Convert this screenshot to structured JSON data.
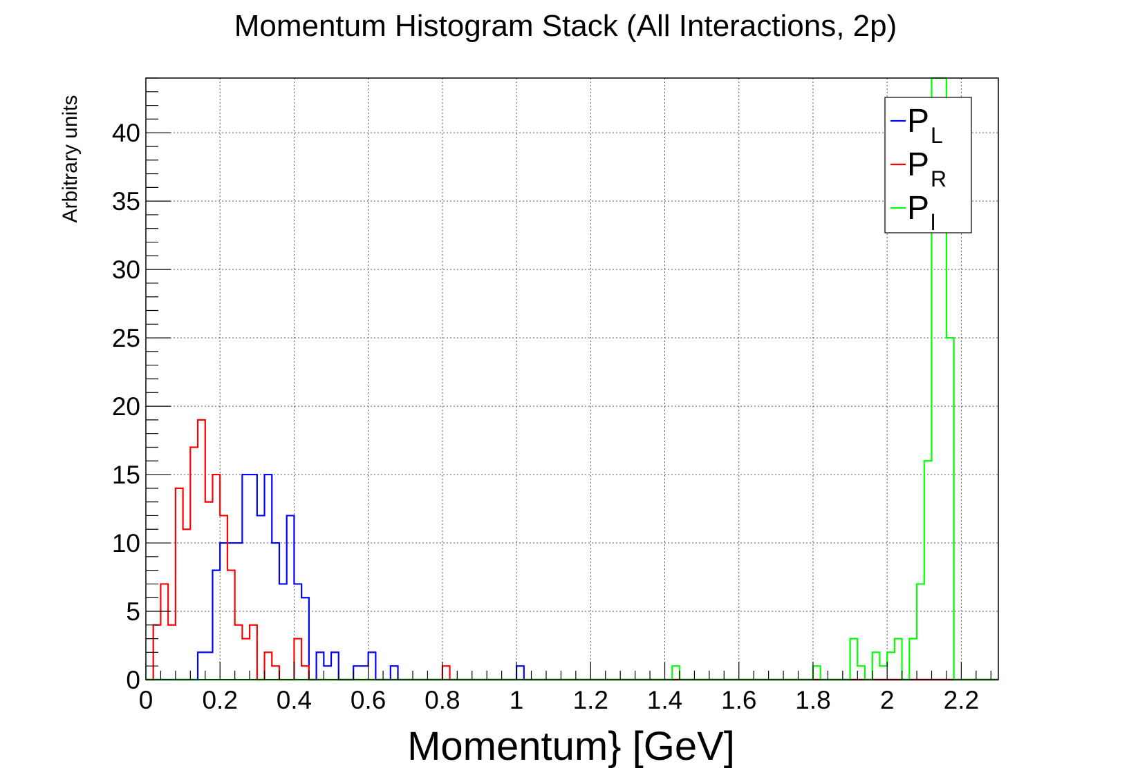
{
  "chart_data": {
    "type": "line",
    "title": "Momentum Histogram Stack (All Interactions, 2p)",
    "xlabel": "Momentum} [GeV]",
    "ylabel": "Arbitrary units",
    "xlim": [
      0,
      2.3
    ],
    "ylim": [
      0,
      44
    ],
    "bin_width": 0.02,
    "grid": true,
    "legend_position": "top-right",
    "x_ticks": [
      0,
      0.2,
      0.4,
      0.6,
      0.8,
      1,
      1.2,
      1.4,
      1.6,
      1.8,
      2,
      2.2
    ],
    "x_tick_labels": [
      "0",
      "0.2",
      "0.4",
      "0.6",
      "0.8",
      "1",
      "1.2",
      "1.4",
      "1.6",
      "1.8",
      "2",
      "2.2"
    ],
    "y_ticks": [
      0,
      5,
      10,
      15,
      20,
      25,
      30,
      35,
      40
    ],
    "y_tick_labels": [
      "0",
      "5",
      "10",
      "15",
      "20",
      "25",
      "30",
      "35",
      "40"
    ],
    "series": [
      {
        "name": "L",
        "legend_main": "P",
        "legend_sub": "L",
        "color": "#0000ff",
        "bins": [
          {
            "x": 0.14,
            "y": 2
          },
          {
            "x": 0.16,
            "y": 2
          },
          {
            "x": 0.18,
            "y": 8
          },
          {
            "x": 0.2,
            "y": 10
          },
          {
            "x": 0.22,
            "y": 10
          },
          {
            "x": 0.24,
            "y": 10
          },
          {
            "x": 0.26,
            "y": 15
          },
          {
            "x": 0.28,
            "y": 15
          },
          {
            "x": 0.3,
            "y": 12
          },
          {
            "x": 0.32,
            "y": 15
          },
          {
            "x": 0.34,
            "y": 10
          },
          {
            "x": 0.36,
            "y": 7
          },
          {
            "x": 0.38,
            "y": 12
          },
          {
            "x": 0.4,
            "y": 7
          },
          {
            "x": 0.42,
            "y": 6
          },
          {
            "x": 0.44,
            "y": 0
          },
          {
            "x": 0.46,
            "y": 2
          },
          {
            "x": 0.48,
            "y": 1
          },
          {
            "x": 0.5,
            "y": 2
          },
          {
            "x": 0.52,
            "y": 0
          },
          {
            "x": 0.54,
            "y": 0
          },
          {
            "x": 0.56,
            "y": 1
          },
          {
            "x": 0.58,
            "y": 1
          },
          {
            "x": 0.6,
            "y": 2
          },
          {
            "x": 0.62,
            "y": 0
          },
          {
            "x": 0.64,
            "y": 0
          },
          {
            "x": 0.66,
            "y": 1
          },
          {
            "x": 0.68,
            "y": 0
          },
          {
            "x": 1.0,
            "y": 1
          }
        ]
      },
      {
        "name": "R",
        "legend_main": "P",
        "legend_sub": "R",
        "color": "#ff0000",
        "bins": [
          {
            "x": 0.02,
            "y": 4
          },
          {
            "x": 0.04,
            "y": 7
          },
          {
            "x": 0.06,
            "y": 4
          },
          {
            "x": 0.08,
            "y": 14
          },
          {
            "x": 0.1,
            "y": 11
          },
          {
            "x": 0.12,
            "y": 17
          },
          {
            "x": 0.14,
            "y": 19
          },
          {
            "x": 0.16,
            "y": 13
          },
          {
            "x": 0.18,
            "y": 15
          },
          {
            "x": 0.2,
            "y": 12
          },
          {
            "x": 0.22,
            "y": 8
          },
          {
            "x": 0.24,
            "y": 4
          },
          {
            "x": 0.26,
            "y": 3
          },
          {
            "x": 0.28,
            "y": 4
          },
          {
            "x": 0.3,
            "y": 0
          },
          {
            "x": 0.32,
            "y": 2
          },
          {
            "x": 0.34,
            "y": 1
          },
          {
            "x": 0.36,
            "y": 0
          },
          {
            "x": 0.38,
            "y": 0
          },
          {
            "x": 0.4,
            "y": 3
          },
          {
            "x": 0.42,
            "y": 1
          },
          {
            "x": 0.8,
            "y": 1
          }
        ]
      },
      {
        "name": "l",
        "legend_main": "P",
        "legend_sub": "l",
        "color": "#00ff00",
        "bins": [
          {
            "x": 1.42,
            "y": 1
          },
          {
            "x": 1.8,
            "y": 1
          },
          {
            "x": 1.9,
            "y": 3
          },
          {
            "x": 1.92,
            "y": 1
          },
          {
            "x": 1.94,
            "y": 0
          },
          {
            "x": 1.96,
            "y": 2
          },
          {
            "x": 1.98,
            "y": 1
          },
          {
            "x": 2.0,
            "y": 2
          },
          {
            "x": 2.02,
            "y": 3
          },
          {
            "x": 2.04,
            "y": 0
          },
          {
            "x": 2.06,
            "y": 3
          },
          {
            "x": 2.08,
            "y": 7
          },
          {
            "x": 2.1,
            "y": 16
          },
          {
            "x": 2.12,
            "y": 44
          },
          {
            "x": 2.14,
            "y": 44
          },
          {
            "x": 2.16,
            "y": 25
          }
        ]
      }
    ]
  }
}
